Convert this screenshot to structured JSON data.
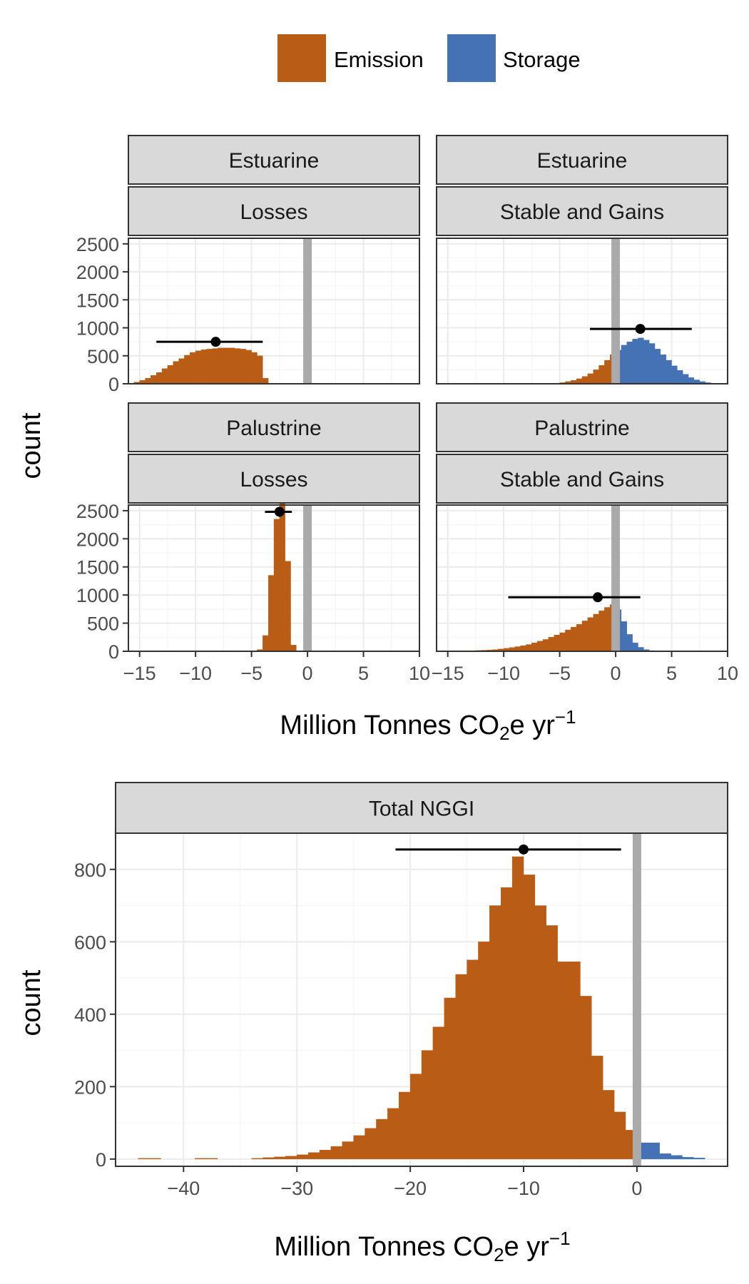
{
  "legend": [
    {
      "label": "Emission",
      "color": "#b85c16"
    },
    {
      "label": "Storage",
      "color": "#4472b4"
    }
  ],
  "colors": {
    "emission": "#b85c16",
    "storage": "#4472b4",
    "zero_line": "#aaaaaa",
    "strip_fill": "#d9d9d9",
    "grid_major": "#ebebeb",
    "grid_minor": "#f5f5f5",
    "point": "#000000"
  },
  "chart_data": [
    {
      "type": "bar",
      "subtype": "faceted histogram",
      "ylabel": "count",
      "xlabel": {
        "main": "Million Tonnes CO",
        "subscript": "2",
        "middle": "e yr",
        "superscript": "−1"
      },
      "xlim": [
        -16,
        10
      ],
      "ylim": [
        0,
        2600
      ],
      "x_ticks": [
        -15,
        -10,
        -5,
        0,
        5,
        10
      ],
      "x_tick_labels": [
        "−15",
        "−10",
        "−5",
        "0",
        "5",
        "10"
      ],
      "y_ticks": [
        0,
        500,
        1000,
        1500,
        2000,
        2500
      ],
      "y_tick_labels": [
        "0",
        "500",
        "1000",
        "1500",
        "2000",
        "2500"
      ],
      "bin_width": 0.5,
      "facets": [
        {
          "strip": [
            "Estuarine",
            "Losses"
          ],
          "point": 750,
          "x_center": -8.2,
          "interval": [
            -13.5,
            -4
          ],
          "bins_x": [
            -15.25,
            -14.75,
            -14.25,
            -13.75,
            -13.25,
            -12.75,
            -12.25,
            -11.75,
            -11.25,
            -10.75,
            -10.25,
            -9.75,
            -9.25,
            -8.75,
            -8.25,
            -7.75,
            -7.25,
            -6.75,
            -6.25,
            -5.75,
            -5.25,
            -4.75,
            -4.25,
            -3.75
          ],
          "counts": [
            30,
            60,
            100,
            150,
            200,
            270,
            330,
            400,
            450,
            510,
            560,
            590,
            610,
            620,
            630,
            640,
            640,
            640,
            630,
            620,
            600,
            560,
            500,
            100
          ],
          "zero_bin": 0
        },
        {
          "strip": [
            "Estuarine",
            "Stable and Gains"
          ],
          "point": 980,
          "x_center": 2.2,
          "interval": [
            -2.3,
            6.8
          ],
          "bins_x": [
            -5.25,
            -4.75,
            -4.25,
            -3.75,
            -3.25,
            -2.75,
            -2.25,
            -1.75,
            -1.25,
            -0.75,
            -0.25,
            0.25,
            0.75,
            1.25,
            1.75,
            2.25,
            2.75,
            3.25,
            3.75,
            4.25,
            4.75,
            5.25,
            5.75,
            6.25,
            6.75,
            7.25,
            7.75,
            8.25,
            8.75
          ],
          "counts": [
            10,
            20,
            40,
            60,
            90,
            130,
            180,
            250,
            330,
            420,
            520,
            600,
            690,
            750,
            800,
            820,
            780,
            720,
            620,
            520,
            420,
            320,
            240,
            170,
            110,
            70,
            40,
            20,
            10
          ],
          "zero_bin": 0
        },
        {
          "strip": [
            "Palustrine",
            "Losses"
          ],
          "point": 2480,
          "x_center": -2.5,
          "interval": [
            -3.8,
            -1.4
          ],
          "bins_x": [
            -4.25,
            -3.75,
            -3.25,
            -2.75,
            -2.25,
            -1.75,
            -1.25
          ],
          "counts": [
            30,
            280,
            1350,
            2350,
            2700,
            1600,
            110
          ],
          "zero_bin": 0
        },
        {
          "strip": [
            "Palustrine",
            "Stable and Gains"
          ],
          "point": 960,
          "x_center": -1.6,
          "interval": [
            -9.6,
            2.2
          ],
          "bins_x": [
            -14.75,
            -14.25,
            -13.75,
            -13.25,
            -12.75,
            -12.25,
            -11.75,
            -11.25,
            -10.75,
            -10.25,
            -9.75,
            -9.25,
            -8.75,
            -8.25,
            -7.75,
            -7.25,
            -6.75,
            -6.25,
            -5.75,
            -5.25,
            -4.75,
            -4.25,
            -3.75,
            -3.25,
            -2.75,
            -2.25,
            -1.75,
            -1.25,
            -0.75,
            -0.25,
            0.25,
            0.75,
            1.25,
            1.75,
            2.25,
            2.75,
            3.25,
            3.75
          ],
          "counts": [
            2,
            3,
            5,
            7,
            10,
            14,
            18,
            24,
            30,
            40,
            52,
            66,
            82,
            100,
            120,
            150,
            180,
            210,
            250,
            290,
            330,
            380,
            430,
            480,
            540,
            600,
            660,
            720,
            780,
            830,
            740,
            530,
            300,
            150,
            70,
            30,
            12,
            5
          ],
          "zero_bin": 0
        }
      ]
    },
    {
      "type": "bar",
      "subtype": "histogram",
      "strip": [
        "Total NGGI"
      ],
      "ylabel": "count",
      "xlabel": {
        "main": "Million Tonnes CO",
        "subscript": "2",
        "middle": "e yr",
        "superscript": "−1"
      },
      "xlim": [
        -46,
        8
      ],
      "ylim": [
        -20,
        900
      ],
      "x_ticks": [
        -40,
        -30,
        -20,
        -10,
        0
      ],
      "x_tick_labels": [
        "−40",
        "−30",
        "−20",
        "−10",
        "0"
      ],
      "y_ticks": [
        0,
        200,
        400,
        600,
        800
      ],
      "y_tick_labels": [
        "0",
        "200",
        "400",
        "600",
        "800"
      ],
      "bin_width": 1,
      "point": 855,
      "x_center": -10,
      "interval": [
        -21.3,
        -1.4
      ],
      "bins_x": [
        -43.5,
        -42.5,
        -38.5,
        -37.5,
        -33.5,
        -32.5,
        -31.5,
        -30.5,
        -29.5,
        -28.5,
        -27.5,
        -26.5,
        -25.5,
        -24.5,
        -23.5,
        -22.5,
        -21.5,
        -20.5,
        -19.5,
        -18.5,
        -17.5,
        -16.5,
        -15.5,
        -14.5,
        -13.5,
        -12.5,
        -11.5,
        -10.5,
        -9.5,
        -8.5,
        -7.5,
        -6.5,
        -5.5,
        -4.5,
        -3.5,
        -2.5,
        -1.5,
        -0.5,
        0.5,
        1.5,
        2.5,
        3.5,
        4.5,
        5.5
      ],
      "counts": [
        2,
        2,
        2,
        2,
        2,
        4,
        6,
        8,
        12,
        18,
        25,
        35,
        48,
        65,
        85,
        110,
        140,
        185,
        235,
        300,
        365,
        445,
        510,
        550,
        600,
        700,
        750,
        835,
        785,
        700,
        645,
        545,
        545,
        450,
        285,
        190,
        130,
        80,
        45,
        45,
        15,
        10,
        5,
        3
      ],
      "storage_from_x": 0
    }
  ]
}
